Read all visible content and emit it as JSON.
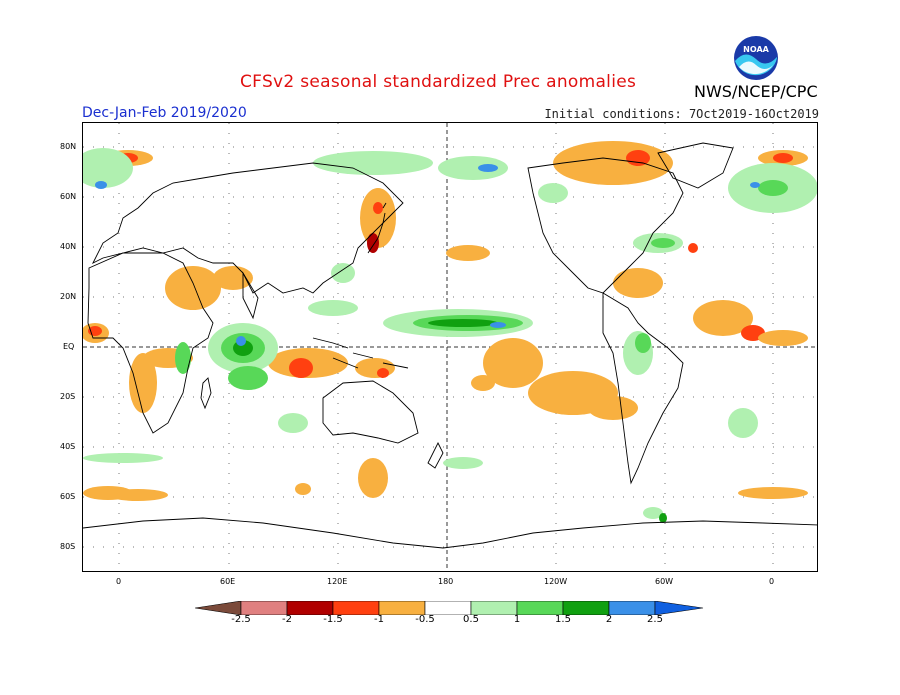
{
  "header": {
    "title": "CFSv2 seasonal standardized Prec anomalies",
    "season": "Dec-Jan-Feb 2019/2020",
    "initial_conditions": "Initial conditions: 7Oct2019-16Oct2019",
    "agency": "NWS/NCEP/CPC",
    "logo_text": "NOAA"
  },
  "axes": {
    "lat_labels": [
      "80N",
      "60N",
      "40N",
      "20N",
      "EQ",
      "20S",
      "40S",
      "60S",
      "80S"
    ],
    "lon_labels": [
      "0",
      "60E",
      "120E",
      "180",
      "120W",
      "60W",
      "0"
    ]
  },
  "colorbar": {
    "labels": [
      "-2.5",
      "-2",
      "-1.5",
      "-1",
      "-0.5",
      "0.5",
      "1",
      "1.5",
      "2",
      "2.5"
    ],
    "colors": [
      "#7b4a3a",
      "#e08080",
      "#b00000",
      "#ff4010",
      "#f8b040",
      "#ffffff",
      "#b0f0b0",
      "#58d858",
      "#10a010",
      "#3a90e8",
      "#1060e0"
    ]
  },
  "legend_colors": {
    "dry_light": "#f8b040",
    "dry_mod": "#ff4010",
    "dry_strong": "#b00000",
    "dry_pink": "#e08080",
    "wet_light": "#b0f0b0",
    "wet_mod": "#58d858",
    "wet_strong": "#10a010",
    "wet_blue": "#3a90e8"
  }
}
